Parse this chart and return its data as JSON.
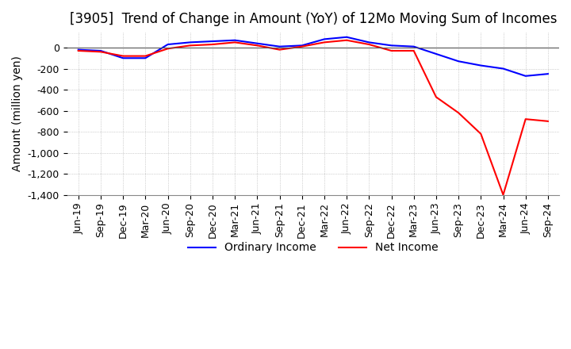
{
  "title": "[3905]  Trend of Change in Amount (YoY) of 12Mo Moving Sum of Incomes",
  "ylabel": "Amount (million yen)",
  "ylim": [
    -1400,
    150
  ],
  "yticks": [
    0,
    -200,
    -400,
    -600,
    -800,
    -1000,
    -1200,
    -1400
  ],
  "x_labels": [
    "Jun-19",
    "Sep-19",
    "Dec-19",
    "Mar-20",
    "Jun-20",
    "Sep-20",
    "Dec-20",
    "Mar-21",
    "Jun-21",
    "Sep-21",
    "Dec-21",
    "Mar-22",
    "Jun-22",
    "Sep-22",
    "Dec-22",
    "Mar-23",
    "Jun-23",
    "Sep-23",
    "Dec-23",
    "Mar-24",
    "Jun-24",
    "Sep-24"
  ],
  "ordinary_income": [
    -20,
    -30,
    -100,
    -100,
    30,
    50,
    60,
    70,
    40,
    10,
    20,
    80,
    100,
    50,
    20,
    10,
    -60,
    -130,
    -170,
    -200,
    -270,
    -250
  ],
  "net_income": [
    -30,
    -40,
    -80,
    -80,
    -10,
    20,
    30,
    50,
    20,
    -20,
    10,
    50,
    70,
    30,
    -30,
    -30,
    -470,
    -620,
    -820,
    -1400,
    -680,
    -700
  ],
  "ordinary_color": "#0000ff",
  "net_color": "#ff0000",
  "background_color": "#ffffff",
  "grid_color": "#aaaaaa",
  "title_fontsize": 12,
  "label_fontsize": 10,
  "tick_fontsize": 9,
  "legend_fontsize": 10
}
